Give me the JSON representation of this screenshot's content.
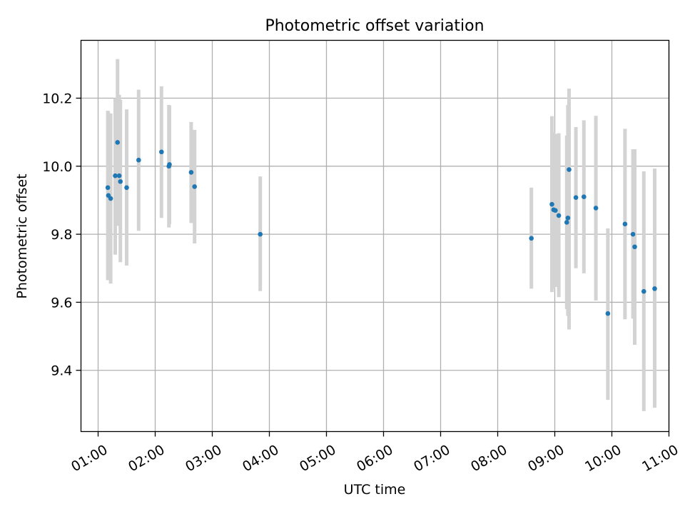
{
  "chart_data": {
    "type": "scatter",
    "title": "Photometric offset variation",
    "xlabel": "UTC time",
    "ylabel": "Photometric offset",
    "x_unit": "UTC hour of day",
    "xlim": [
      0.7,
      11.0
    ],
    "ylim": [
      9.22,
      10.37
    ],
    "grid": true,
    "x_ticks": [
      {
        "value": 1,
        "label": "01:00"
      },
      {
        "value": 2,
        "label": "02:00"
      },
      {
        "value": 3,
        "label": "03:00"
      },
      {
        "value": 4,
        "label": "04:00"
      },
      {
        "value": 5,
        "label": "05:00"
      },
      {
        "value": 6,
        "label": "06:00"
      },
      {
        "value": 7,
        "label": "07:00"
      },
      {
        "value": 8,
        "label": "08:00"
      },
      {
        "value": 9,
        "label": "09:00"
      },
      {
        "value": 10,
        "label": "10:00"
      },
      {
        "value": 11,
        "label": "11:00"
      }
    ],
    "y_ticks": [
      {
        "value": 9.4,
        "label": "9.4"
      },
      {
        "value": 9.6,
        "label": "9.6"
      },
      {
        "value": 9.8,
        "label": "9.8"
      },
      {
        "value": 10.0,
        "label": "10.0"
      },
      {
        "value": 10.2,
        "label": "10.2"
      }
    ],
    "point_color": "#1f77b4",
    "errorbar_color": "#d3d3d3",
    "points": [
      {
        "x": 1.17,
        "y": 9.937,
        "lo": 9.665,
        "hi": 10.163
      },
      {
        "x": 1.18,
        "y": 9.914,
        "lo": 9.67,
        "hi": 10.16
      },
      {
        "x": 1.22,
        "y": 9.905,
        "lo": 9.655,
        "hi": 10.155
      },
      {
        "x": 1.3,
        "y": 9.972,
        "lo": 9.74,
        "hi": 10.2
      },
      {
        "x": 1.34,
        "y": 10.07,
        "lo": 9.825,
        "hi": 10.315
      },
      {
        "x": 1.37,
        "y": 9.972,
        "lo": 9.825,
        "hi": 10.21
      },
      {
        "x": 1.39,
        "y": 9.955,
        "lo": 9.718,
        "hi": 10.195
      },
      {
        "x": 1.5,
        "y": 9.937,
        "lo": 9.708,
        "hi": 10.167
      },
      {
        "x": 1.71,
        "y": 10.018,
        "lo": 9.81,
        "hi": 10.225
      },
      {
        "x": 2.11,
        "y": 10.042,
        "lo": 9.848,
        "hi": 10.235
      },
      {
        "x": 2.24,
        "y": 10.0,
        "lo": 9.82,
        "hi": 10.18
      },
      {
        "x": 2.25,
        "y": 10.005,
        "lo": 9.83,
        "hi": 10.178
      },
      {
        "x": 2.63,
        "y": 9.982,
        "lo": 9.833,
        "hi": 10.13
      },
      {
        "x": 2.69,
        "y": 9.94,
        "lo": 9.773,
        "hi": 10.107
      },
      {
        "x": 3.84,
        "y": 9.8,
        "lo": 9.633,
        "hi": 9.97
      },
      {
        "x": 8.59,
        "y": 9.788,
        "lo": 9.64,
        "hi": 9.937
      },
      {
        "x": 8.95,
        "y": 9.888,
        "lo": 9.63,
        "hi": 10.147
      },
      {
        "x": 8.98,
        "y": 9.872,
        "lo": 9.64,
        "hi": 10.1
      },
      {
        "x": 9.01,
        "y": 9.87,
        "lo": 9.645,
        "hi": 10.095
      },
      {
        "x": 9.07,
        "y": 9.855,
        "lo": 9.615,
        "hi": 10.097
      },
      {
        "x": 9.21,
        "y": 9.835,
        "lo": 9.58,
        "hi": 10.09
      },
      {
        "x": 9.23,
        "y": 9.848,
        "lo": 9.56,
        "hi": 10.18
      },
      {
        "x": 9.25,
        "y": 9.99,
        "lo": 9.52,
        "hi": 10.228
      },
      {
        "x": 9.37,
        "y": 9.908,
        "lo": 9.7,
        "hi": 10.115
      },
      {
        "x": 9.51,
        "y": 9.91,
        "lo": 9.685,
        "hi": 10.135
      },
      {
        "x": 9.72,
        "y": 9.877,
        "lo": 9.605,
        "hi": 10.148
      },
      {
        "x": 9.93,
        "y": 9.567,
        "lo": 9.313,
        "hi": 9.817
      },
      {
        "x": 10.23,
        "y": 9.83,
        "lo": 9.55,
        "hi": 10.11
      },
      {
        "x": 10.37,
        "y": 9.8,
        "lo": 9.552,
        "hi": 10.05
      },
      {
        "x": 10.4,
        "y": 9.763,
        "lo": 9.475,
        "hi": 10.05
      },
      {
        "x": 10.56,
        "y": 9.632,
        "lo": 9.28,
        "hi": 9.985
      },
      {
        "x": 10.75,
        "y": 9.64,
        "lo": 9.29,
        "hi": 9.993
      }
    ]
  }
}
